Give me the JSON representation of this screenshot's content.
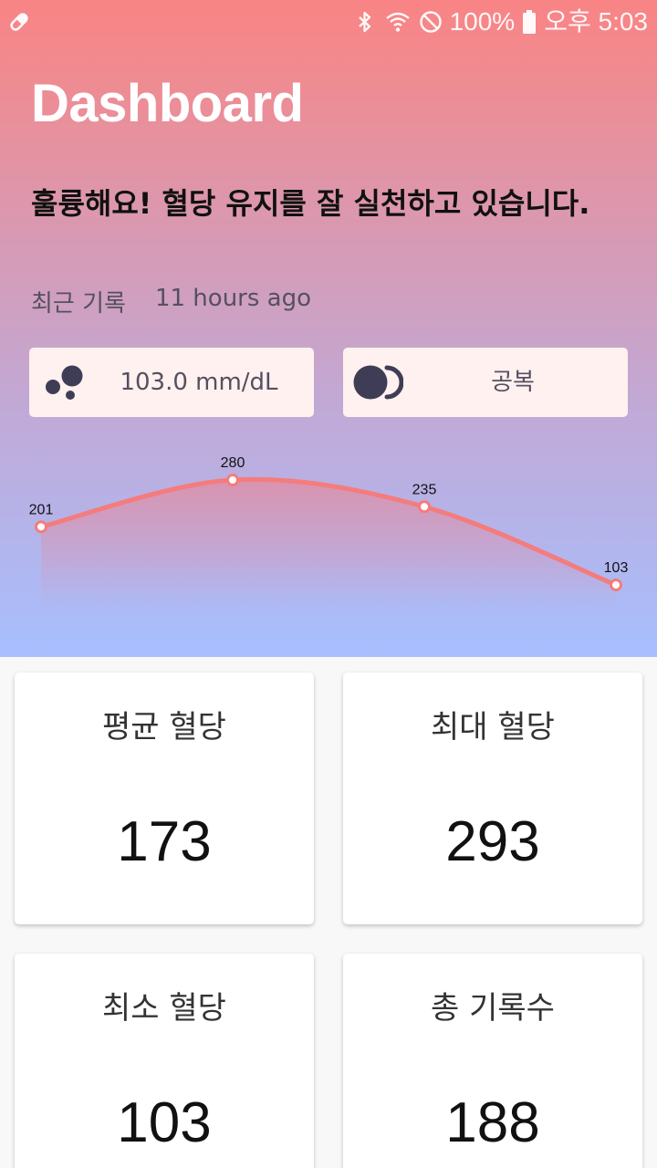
{
  "status_bar": {
    "battery": "100%",
    "time": "오후 5:03",
    "icons": [
      "pill-icon",
      "bluetooth-icon",
      "wifi-icon",
      "do-not-disturb-icon",
      "battery-icon"
    ]
  },
  "header": {
    "title": "Dashboard",
    "message": "훌륭해요! 혈당 유지를 잘 실천하고 있습니다."
  },
  "recent": {
    "label": "최근 기록",
    "time_ago": "11 hours ago"
  },
  "chips": {
    "glucose": {
      "value": "103.0 mm/dL",
      "icon": "blood-drops-icon"
    },
    "meal": {
      "value": "공복",
      "icon": "moon-icon"
    }
  },
  "chart_data": {
    "type": "line",
    "values": [
      201,
      280,
      235,
      103
    ],
    "labels": [
      "201",
      "280",
      "235",
      "103"
    ],
    "ylim": [
      0,
      320
    ],
    "grid": false,
    "colors": {
      "line": "#f47c7c",
      "fill_top": "#f09aa0",
      "point_fill": "#ffffff"
    }
  },
  "stats": {
    "average": {
      "label": "평균 혈당",
      "value": "173"
    },
    "max": {
      "label": "최대 혈당",
      "value": "293"
    },
    "min": {
      "label": "최소 혈당",
      "value": "103"
    },
    "count": {
      "label": "총 기록수",
      "value": "188"
    }
  },
  "colors": {
    "gradient_top": "#f98485",
    "gradient_bottom": "#a7bfff",
    "chip_background": "#fff1ef",
    "icon_dark": "#3f3d56"
  }
}
